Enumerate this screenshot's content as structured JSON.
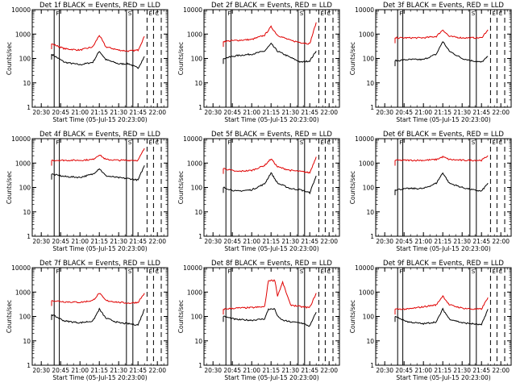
{
  "figure": {
    "xlabel": "Start Time (05-Jul-15 20:23:00)",
    "ylabel": "Counts/sec",
    "x_ticks": [
      "20:30",
      "20:45",
      "21:00",
      "21:15",
      "21:30",
      "21:45",
      "22:00"
    ],
    "y_ticks": [
      "1",
      "10",
      "100",
      "1000",
      "10000"
    ],
    "marker_letters": [
      "F",
      "S",
      "E",
      "C"
    ],
    "colors": {
      "events": "#000000",
      "lld": "#e00000",
      "background": "#ffffff"
    }
  },
  "chart_data": [
    {
      "type": "line",
      "title": "Det 1f BLACK = Events, RED = LLD",
      "xlabel": "Start Time (05-Jul-15 20:23:00)",
      "ylabel": "Counts/sec",
      "yscale": "log",
      "ylim": [
        1,
        10000
      ],
      "x": [
        "20:38",
        "20:48",
        "21:00",
        "21:10",
        "21:15",
        "21:20",
        "21:30",
        "21:38",
        "21:45",
        "21:50"
      ],
      "series": [
        {
          "name": "Events",
          "color": "#000000",
          "values": [
            150,
            70,
            55,
            70,
            200,
            90,
            60,
            60,
            40,
            120
          ]
        },
        {
          "name": "LLD",
          "color": "#e00000",
          "values": [
            400,
            250,
            220,
            300,
            900,
            300,
            220,
            200,
            220,
            800
          ]
        }
      ]
    },
    {
      "type": "line",
      "title": "Det 2f BLACK = Events, RED = LLD",
      "xlabel": "Start Time (05-Jul-15 20:23:00)",
      "ylabel": "Counts/sec",
      "yscale": "log",
      "ylim": [
        1,
        10000
      ],
      "x": [
        "20:38",
        "20:48",
        "21:00",
        "21:10",
        "21:15",
        "21:20",
        "21:30",
        "21:38",
        "21:45",
        "21:50"
      ],
      "series": [
        {
          "name": "Events",
          "color": "#000000",
          "values": [
            100,
            130,
            150,
            200,
            400,
            200,
            110,
            70,
            80,
            200
          ]
        },
        {
          "name": "LLD",
          "color": "#e00000",
          "values": [
            500,
            550,
            600,
            900,
            2000,
            900,
            550,
            450,
            400,
            3000
          ]
        }
      ]
    },
    {
      "type": "line",
      "title": "Det 3f BLACK = Events, RED = LLD",
      "xlabel": "Start Time (05-Jul-15 20:23:00)",
      "ylabel": "Counts/sec",
      "yscale": "log",
      "ylim": [
        1,
        10000
      ],
      "x": [
        "20:38",
        "20:48",
        "21:00",
        "21:10",
        "21:15",
        "21:20",
        "21:30",
        "21:38",
        "21:45",
        "21:50"
      ],
      "series": [
        {
          "name": "Events",
          "color": "#000000",
          "values": [
            80,
            90,
            90,
            150,
            500,
            200,
            100,
            80,
            70,
            120
          ]
        },
        {
          "name": "LLD",
          "color": "#e00000",
          "values": [
            700,
            700,
            700,
            800,
            1500,
            800,
            700,
            700,
            700,
            1500
          ]
        }
      ]
    },
    {
      "type": "line",
      "title": "Det 4f BLACK = Events, RED = LLD",
      "xlabel": "Start Time (05-Jul-15 20:23:00)",
      "ylabel": "Counts/sec",
      "yscale": "log",
      "ylim": [
        1,
        10000
      ],
      "x": [
        "20:38",
        "20:48",
        "21:00",
        "21:10",
        "21:15",
        "21:20",
        "21:30",
        "21:38",
        "21:45",
        "21:50"
      ],
      "series": [
        {
          "name": "Events",
          "color": "#000000",
          "values": [
            350,
            280,
            260,
            350,
            600,
            300,
            250,
            230,
            200,
            800
          ]
        },
        {
          "name": "LLD",
          "color": "#e00000",
          "values": [
            1300,
            1300,
            1300,
            1400,
            2200,
            1400,
            1300,
            1300,
            1300,
            4000
          ]
        }
      ]
    },
    {
      "type": "line",
      "title": "Det 5f BLACK = Events, RED = LLD",
      "xlabel": "Start Time (05-Jul-15 20:23:00)",
      "ylabel": "Counts/sec",
      "yscale": "log",
      "ylim": [
        1,
        10000
      ],
      "x": [
        "20:38",
        "20:48",
        "21:00",
        "21:10",
        "21:15",
        "21:20",
        "21:30",
        "21:38",
        "21:45",
        "21:50"
      ],
      "series": [
        {
          "name": "Events",
          "color": "#000000",
          "values": [
            100,
            70,
            80,
            140,
            400,
            150,
            90,
            80,
            60,
            300
          ]
        },
        {
          "name": "LLD",
          "color": "#e00000",
          "values": [
            600,
            450,
            500,
            800,
            1500,
            700,
            500,
            450,
            400,
            1800
          ]
        }
      ]
    },
    {
      "type": "line",
      "title": "Det 6f BLACK = Events, RED = LLD",
      "xlabel": "Start Time (05-Jul-15 20:23:00)",
      "ylabel": "Counts/sec",
      "yscale": "log",
      "ylim": [
        1,
        10000
      ],
      "x": [
        "20:38",
        "20:48",
        "21:00",
        "21:10",
        "21:15",
        "21:20",
        "21:30",
        "21:38",
        "21:45",
        "21:50"
      ],
      "series": [
        {
          "name": "Events",
          "color": "#000000",
          "values": [
            80,
            90,
            90,
            150,
            400,
            150,
            100,
            80,
            70,
            150
          ]
        },
        {
          "name": "LLD",
          "color": "#e00000",
          "values": [
            1300,
            1300,
            1300,
            1400,
            1800,
            1400,
            1300,
            1300,
            1300,
            2000
          ]
        }
      ]
    },
    {
      "type": "line",
      "title": "Det 7f BLACK = Events, RED = LLD",
      "xlabel": "Start Time (05-Jul-15 20:23:00)",
      "ylabel": "Counts/sec",
      "yscale": "log",
      "ylim": [
        1,
        10000
      ],
      "x": [
        "20:38",
        "20:48",
        "21:00",
        "21:10",
        "21:15",
        "21:20",
        "21:30",
        "21:38",
        "21:45",
        "21:50"
      ],
      "series": [
        {
          "name": "Events",
          "color": "#000000",
          "values": [
            120,
            65,
            55,
            65,
            200,
            85,
            55,
            50,
            45,
            200
          ]
        },
        {
          "name": "LLD",
          "color": "#e00000",
          "values": [
            450,
            400,
            380,
            450,
            900,
            450,
            380,
            350,
            380,
            900
          ]
        }
      ]
    },
    {
      "type": "line",
      "title": "Det 8f BLACK = Events, RED = LLD",
      "xlabel": "Start Time (05-Jul-15 20:23:00)",
      "ylabel": "Counts/sec",
      "yscale": "log",
      "ylim": [
        1,
        10000
      ],
      "x": [
        "20:38",
        "20:48",
        "21:00",
        "21:10",
        "21:13",
        "21:18",
        "21:20",
        "21:24",
        "21:30",
        "21:38",
        "21:45",
        "21:50"
      ],
      "series": [
        {
          "name": "Events",
          "color": "#000000",
          "values": [
            100,
            75,
            70,
            80,
            200,
            200,
            100,
            70,
            60,
            55,
            40,
            150
          ]
        },
        {
          "name": "LLD",
          "color": "#e00000",
          "values": [
            200,
            220,
            230,
            250,
            3000,
            3000,
            700,
            2500,
            300,
            250,
            230,
            900
          ]
        }
      ]
    },
    {
      "type": "line",
      "title": "Det 9f BLACK = Events, RED = LLD",
      "xlabel": "Start Time (05-Jul-15 20:23:00)",
      "ylabel": "Counts/sec",
      "yscale": "log",
      "ylim": [
        1,
        10000
      ],
      "x": [
        "20:38",
        "20:48",
        "21:00",
        "21:10",
        "21:15",
        "21:20",
        "21:30",
        "21:38",
        "21:45",
        "21:50"
      ],
      "series": [
        {
          "name": "Events",
          "color": "#000000",
          "values": [
            100,
            60,
            50,
            60,
            200,
            80,
            55,
            50,
            45,
            200
          ]
        },
        {
          "name": "LLD",
          "color": "#e00000",
          "values": [
            200,
            200,
            250,
            300,
            700,
            300,
            220,
            200,
            200,
            600
          ]
        }
      ]
    }
  ]
}
